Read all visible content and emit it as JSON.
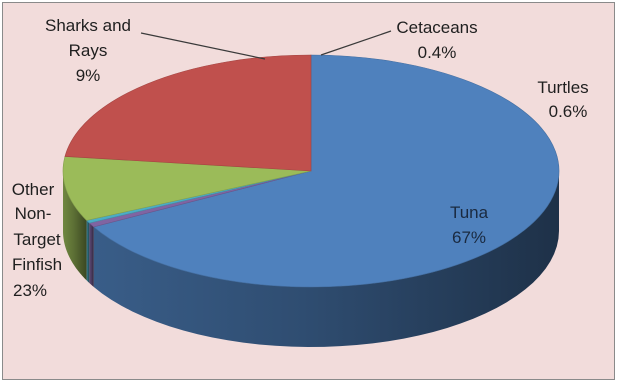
{
  "chart_data": {
    "type": "pie",
    "style": "3d-exploded-slices",
    "legend": "none",
    "slices": [
      {
        "name": "Tuna",
        "value": 67,
        "label": "67%",
        "color": "#4f81bd"
      },
      {
        "name": "Turtles",
        "value": 0.6,
        "label": "0.6%",
        "color": "#8064a2"
      },
      {
        "name": "Cetaceans",
        "value": 0.4,
        "label": "0.4%",
        "color": "#4bacc6"
      },
      {
        "name": "Sharks and Rays",
        "value": 9,
        "label": "9%",
        "color": "#9bbb59"
      },
      {
        "name": "Other Non-Target Finfish",
        "value": 23,
        "label": "23%",
        "color": "#c0504d"
      }
    ],
    "data_labels": {
      "tuna": [
        "Tuna",
        "67%"
      ],
      "turtles": [
        "Turtles",
        "0.6%"
      ],
      "cetaceans": [
        "Cetaceans",
        "0.4%"
      ],
      "sharks": [
        "Sharks and",
        "Rays",
        "9%"
      ],
      "other": [
        "Other",
        "Non-",
        "Target",
        "Finfish",
        "23%"
      ]
    }
  }
}
